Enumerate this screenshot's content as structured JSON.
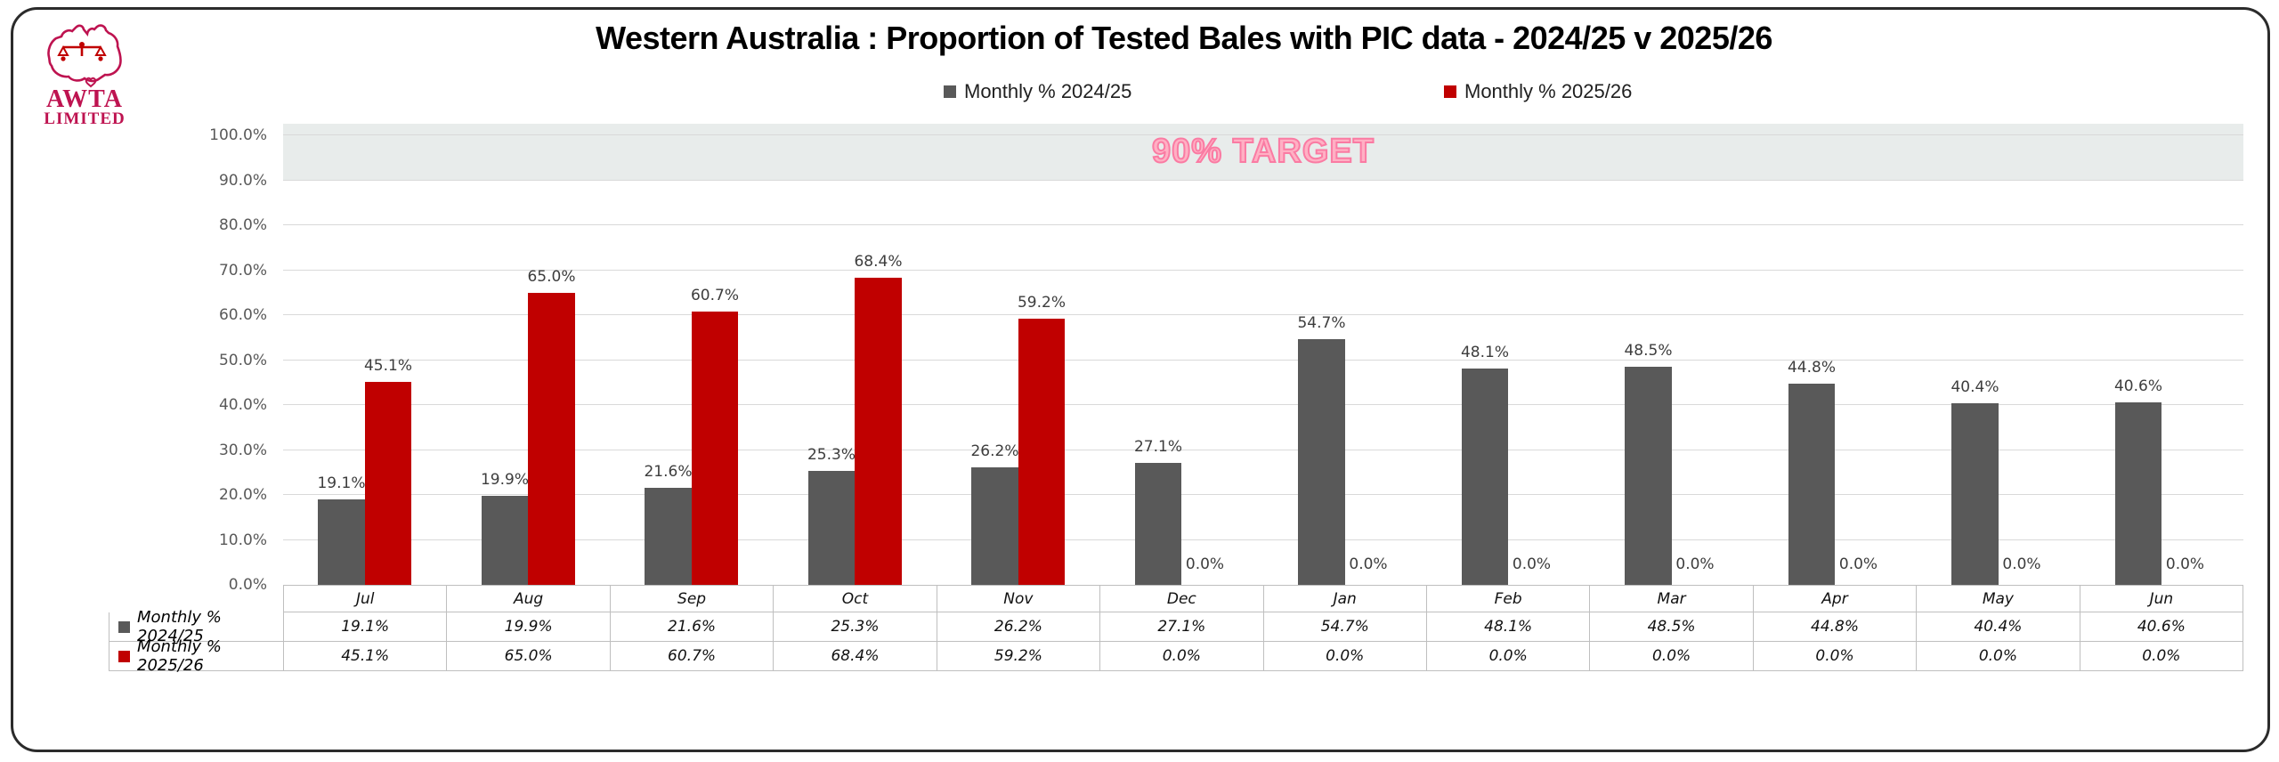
{
  "title": "Western Australia : Proportion of Tested Bales with PIC data - 2024/25 v 2025/26",
  "logo": {
    "line1": "AWTA",
    "line2": "LIMITED",
    "color": "#BE1350"
  },
  "legend": {
    "items": [
      {
        "label": "Monthly % 2024/25",
        "color": "#595959"
      },
      {
        "label": "Monthly % 2025/26",
        "color": "#C00000"
      }
    ]
  },
  "chart_data": {
    "type": "bar",
    "title": "Western Australia : Proportion of Tested Bales with PIC data - 2024/25 v 2025/26",
    "categories": [
      "Jul",
      "Aug",
      "Sep",
      "Oct",
      "Nov",
      "Dec",
      "Jan",
      "Feb",
      "Mar",
      "Apr",
      "May",
      "Jun"
    ],
    "series": [
      {
        "name": "Monthly % 2024/25",
        "color": "#595959",
        "values": [
          19.1,
          19.9,
          21.6,
          25.3,
          26.2,
          27.1,
          54.7,
          48.1,
          48.5,
          44.8,
          40.4,
          40.6
        ]
      },
      {
        "name": "Monthly % 2025/26",
        "color": "#C00000",
        "values": [
          45.1,
          65.0,
          60.7,
          68.4,
          59.2,
          0.0,
          0.0,
          0.0,
          0.0,
          0.0,
          0.0,
          0.0
        ]
      }
    ],
    "xlabel": "",
    "ylabel": "",
    "ylim": [
      0,
      103.3
    ],
    "yticks": [
      0,
      10,
      20,
      30,
      40,
      50,
      60,
      70,
      80,
      90,
      100
    ],
    "ytick_format": "0.0%",
    "grid": true,
    "legend_position": "top",
    "data_labels": true,
    "target_band": {
      "from": 90,
      "to": 103.3,
      "fill": "#E8ECEB",
      "label": "90% TARGET",
      "label_color": "#FFB0C4"
    }
  },
  "table": {
    "columns": [
      "Jul",
      "Aug",
      "Sep",
      "Oct",
      "Nov",
      "Dec",
      "Jan",
      "Feb",
      "Mar",
      "Apr",
      "May",
      "Jun"
    ],
    "rows": [
      {
        "label": "Monthly % 2024/25",
        "color": "#595959",
        "values": [
          "19.1%",
          "19.9%",
          "21.6%",
          "25.3%",
          "26.2%",
          "27.1%",
          "54.7%",
          "48.1%",
          "48.5%",
          "44.8%",
          "40.4%",
          "40.6%"
        ]
      },
      {
        "label": "Monthly % 2025/26",
        "color": "#C00000",
        "values": [
          "45.1%",
          "65.0%",
          "60.7%",
          "68.4%",
          "59.2%",
          "0.0%",
          "0.0%",
          "0.0%",
          "0.0%",
          "0.0%",
          "0.0%",
          "0.0%"
        ]
      }
    ]
  }
}
